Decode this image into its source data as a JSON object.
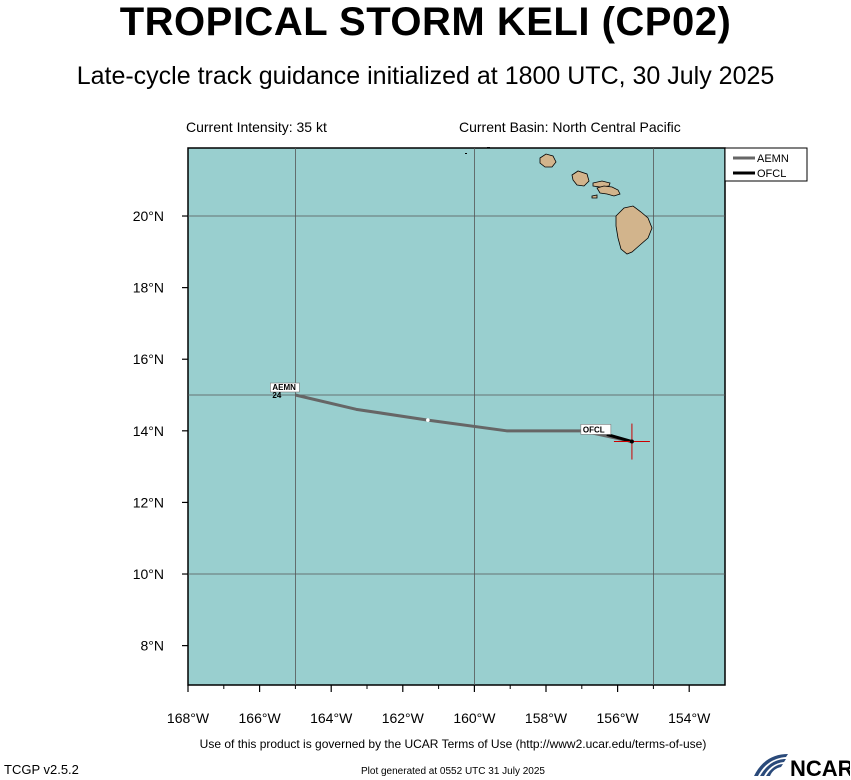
{
  "header": {
    "title": "TROPICAL STORM KELI (CP02)",
    "subtitle": "Late-cycle track guidance initialized at 1800 UTC, 30 July 2025"
  },
  "info": {
    "intensity": "Current Intensity: 35 kt",
    "basin": "Current Basin: North Central Pacific"
  },
  "map": {
    "lon_range": [
      -168,
      -153
    ],
    "lat_range": [
      6.9,
      21.9
    ],
    "lat_ticks": [
      {
        "value": 8,
        "label": "8°N"
      },
      {
        "value": 10,
        "label": "10°N"
      },
      {
        "value": 12,
        "label": "12°N"
      },
      {
        "value": 14,
        "label": "14°N"
      },
      {
        "value": 16,
        "label": "16°N"
      },
      {
        "value": 18,
        "label": "18°N"
      },
      {
        "value": 20,
        "label": "20°N"
      }
    ],
    "lon_ticks": [
      {
        "value": -168,
        "label": "168°W"
      },
      {
        "value": -166,
        "label": "166°W"
      },
      {
        "value": -164,
        "label": "164°W"
      },
      {
        "value": -162,
        "label": "162°W"
      },
      {
        "value": -160,
        "label": "160°W"
      },
      {
        "value": -158,
        "label": "158°W"
      },
      {
        "value": -156,
        "label": "156°W"
      },
      {
        "value": -154,
        "label": "154°W"
      }
    ],
    "grid_lons": [
      -165,
      -160,
      -155
    ],
    "grid_lats": [
      10,
      15,
      20
    ],
    "colors": {
      "ocean": "#99cfcf",
      "land": "#d2b48c",
      "grid": "#555555",
      "aemn": "#666666",
      "ofcl": "#000000",
      "storm_marker": "#cc0000"
    },
    "current_position": {
      "lon": -155.6,
      "lat": 13.7
    },
    "tracks": [
      {
        "name": "AEMN",
        "label": "AEMN",
        "end_label": "24",
        "points": [
          [
            -155.6,
            13.7
          ],
          [
            -157.0,
            14.0
          ],
          [
            -159.1,
            14.0
          ],
          [
            -161.3,
            14.3
          ],
          [
            -163.3,
            14.6
          ],
          [
            -165.0,
            15.0
          ]
        ]
      },
      {
        "name": "OFCL",
        "label": "OFCL",
        "points": [
          [
            -155.6,
            13.7
          ],
          [
            -156.3,
            13.9
          ]
        ]
      }
    ]
  },
  "legend": {
    "items": [
      "AEMN",
      "OFCL"
    ]
  },
  "footer": {
    "terms": "Use of this product is governed by the UCAR Terms of Use (http://www2.ucar.edu/terms-of-use)",
    "version": "TCGP v2.5.2",
    "generated": "Plot generated at 0552 UTC   31 July 2025",
    "logo": "NCAR"
  }
}
